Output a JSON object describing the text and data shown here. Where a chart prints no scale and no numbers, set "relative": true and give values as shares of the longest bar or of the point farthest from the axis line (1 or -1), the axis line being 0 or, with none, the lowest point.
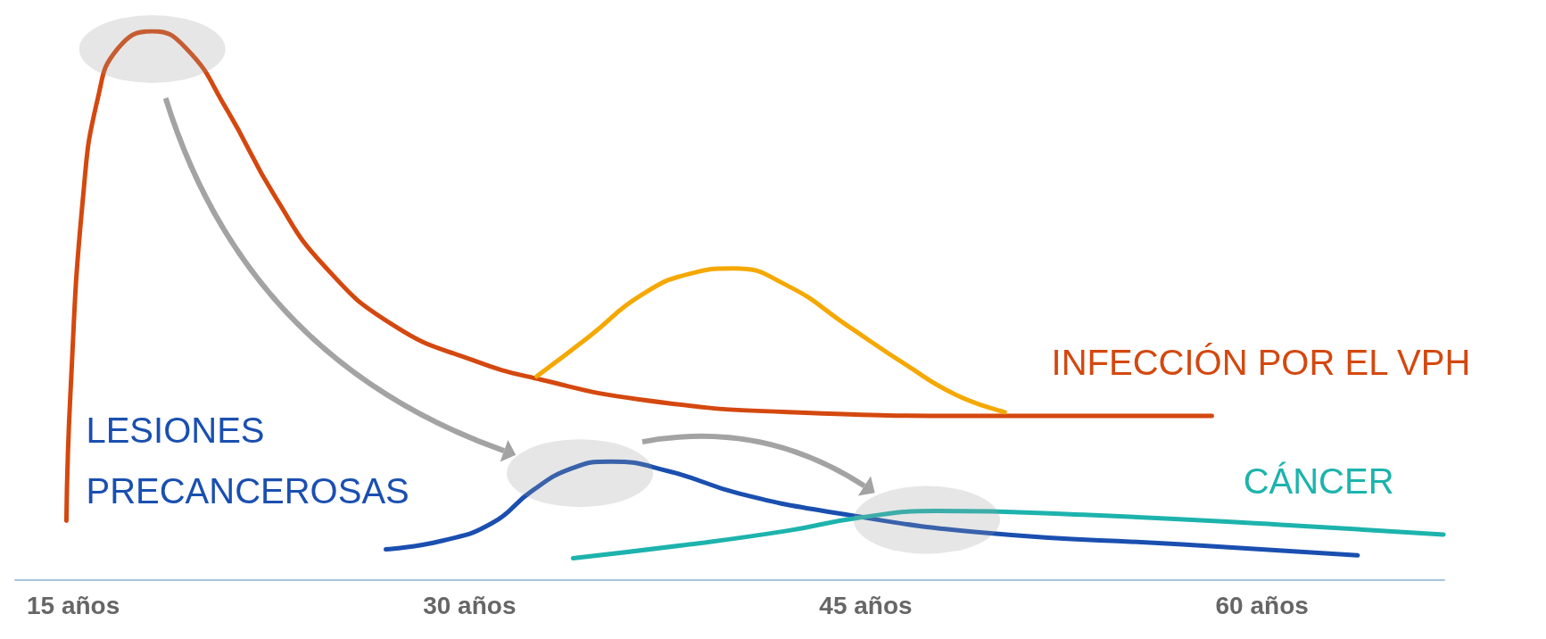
{
  "chart_data": {
    "type": "line",
    "relative": true,
    "xlim": [
      12.8,
      66.9
    ],
    "xticks": [
      {
        "value": 15,
        "label": "15 años"
      },
      {
        "value": 30,
        "label": "30 años"
      },
      {
        "value": 45,
        "label": "45 años"
      },
      {
        "value": 60,
        "label": "60 años"
      }
    ],
    "grid": false,
    "legend": false,
    "marker": "none",
    "line_style": "solid",
    "series": [
      {
        "name": "INFECCIÓN POR EL VPH",
        "color": "#d4480f",
        "x": [
          14.74,
          14.89,
          15.37,
          15.93,
          16.68,
          17.99,
          19.29,
          20.78,
          22.65,
          24.51,
          27.13,
          30.11,
          32.72,
          36.46,
          42.05,
          49.52,
          58.1
        ],
        "values": [
          0.108,
          0.338,
          0.698,
          0.878,
          0.968,
          1,
          0.968,
          0.86,
          0.698,
          0.572,
          0.464,
          0.401,
          0.365,
          0.329,
          0.306,
          0.299,
          0.299
        ]
      },
      {
        "color": "#f5a800",
        "x": [
          32.54,
          34.59,
          36.46,
          38.32,
          40.0,
          42.05,
          44.29,
          46.53,
          48.4,
          50.26
        ],
        "values": [
          0.371,
          0.446,
          0.518,
          0.558,
          0.568,
          0.536,
          0.464,
          0.392,
          0.338,
          0.306
        ]
      },
      {
        "name": "LESIONES PRECANCEROSAS",
        "color": "#1a4fb0",
        "x": [
          26.83,
          28.99,
          30.86,
          32.35,
          33.84,
          35.34,
          37.57,
          40.19,
          43.92,
          49.52,
          56.98,
          63.62
        ],
        "values": [
          0.056,
          0.072,
          0.104,
          0.162,
          0.203,
          0.216,
          0.198,
          0.158,
          0.122,
          0.086,
          0.065,
          0.045
        ]
      },
      {
        "name": "CÁNCER",
        "color": "#1db3ad",
        "x": [
          33.92,
          38.32,
          42.05,
          44.66,
          47.65,
          53.25,
          60.71,
          66.87
        ],
        "values": [
          0.04,
          0.065,
          0.09,
          0.113,
          0.126,
          0.119,
          0.101,
          0.083
        ]
      }
    ]
  }
}
